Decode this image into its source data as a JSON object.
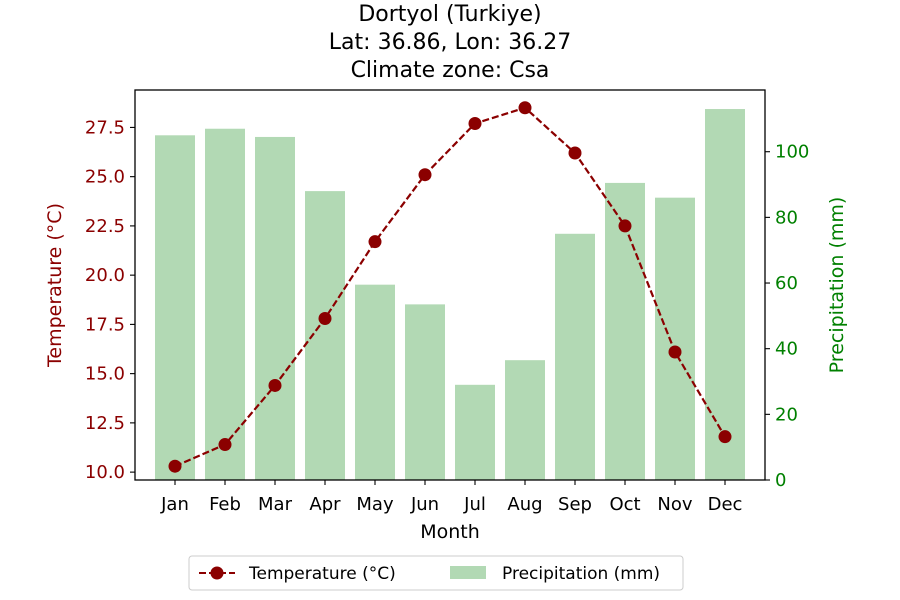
{
  "chart_data": {
    "type": "bar+line",
    "title_lines": [
      "Dortyol (Turkiye)",
      "Lat: 36.86, Lon: 36.27",
      "Climate zone: Csa"
    ],
    "categories": [
      "Jan",
      "Feb",
      "Mar",
      "Apr",
      "May",
      "Jun",
      "Jul",
      "Aug",
      "Sep",
      "Oct",
      "Nov",
      "Dec"
    ],
    "xlabel": "Month",
    "temperature": {
      "name": "Temperature (°C)",
      "axis_label": "Temperature (°C)",
      "values": [
        10.3,
        11.4,
        14.4,
        17.8,
        21.7,
        25.1,
        27.7,
        28.5,
        26.2,
        22.5,
        16.1,
        11.8
      ],
      "ylim": [
        9.6,
        29.4
      ],
      "ticks": [
        "10.0",
        "12.5",
        "15.0",
        "17.5",
        "20.0",
        "22.5",
        "25.0",
        "27.5"
      ],
      "color": "#8b0000"
    },
    "precipitation": {
      "name": "Precipitation (mm)",
      "axis_label": "Precipitation (mm)",
      "values": [
        105,
        107,
        104.5,
        88,
        59.5,
        53.5,
        29,
        36.5,
        75,
        90.5,
        86,
        113
      ],
      "ylim": [
        0,
        118.8
      ],
      "ticks": [
        "0",
        "20",
        "40",
        "60",
        "80",
        "100"
      ],
      "color": "#b2d9b4",
      "axis_color": "#008000"
    },
    "legend_position": "bottom-center",
    "grid": false
  }
}
